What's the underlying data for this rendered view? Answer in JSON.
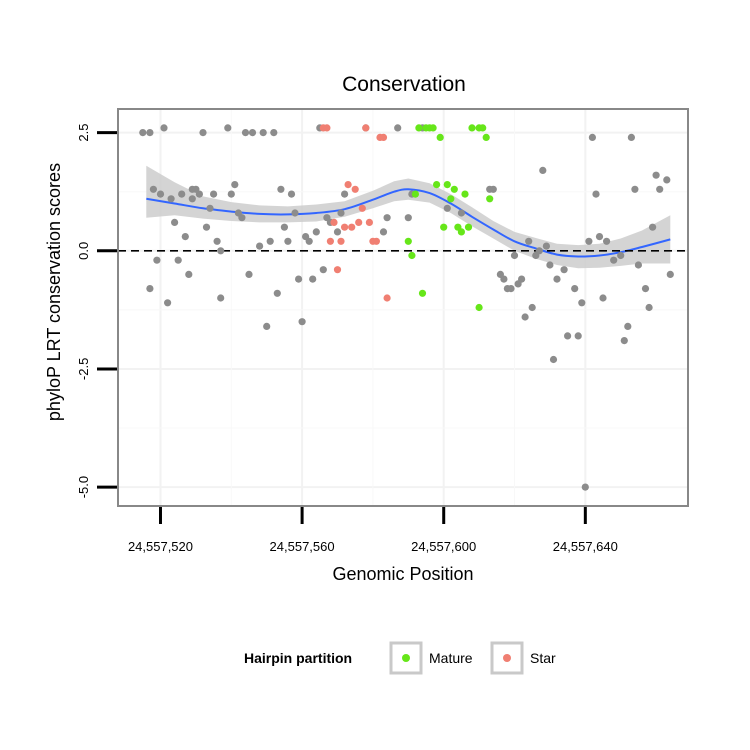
{
  "chart_data": {
    "type": "scatter",
    "title": "Conservation",
    "xlabel": "Genomic Position",
    "ylabel": "phyloP LRT conservation scores",
    "xlim": [
      24557508,
      24557669
    ],
    "ylim": [
      -5.4,
      3.0
    ],
    "x_ticks": [
      {
        "value": 24557520,
        "label": "24,557,520"
      },
      {
        "value": 24557560,
        "label": "24,557,560"
      },
      {
        "value": 24557600,
        "label": "24,557,600"
      },
      {
        "value": 24557640,
        "label": "24,557,640"
      }
    ],
    "y_ticks": [
      {
        "value": 2.5,
        "label": "2.5"
      },
      {
        "value": 0.0,
        "label": "0.0"
      },
      {
        "value": -2.5,
        "label": "-2.5"
      },
      {
        "value": -5.0,
        "label": "-5.0"
      }
    ],
    "reference_line": {
      "y": 0,
      "style": "dashed",
      "color": "#000000"
    },
    "colors": {
      "default": "#8c8c8c",
      "Mature": "#66e619",
      "Star": "#f07f72",
      "smooth": "#3366ff",
      "ribbon": "#cccccc",
      "panel_border": "#888888",
      "grid": "#f2f2f2"
    },
    "legend": {
      "title": "Hairpin partition",
      "position": "bottom",
      "entries": [
        {
          "name": "Mature",
          "color": "#66e619"
        },
        {
          "name": "Star",
          "color": "#f07f72"
        }
      ]
    },
    "smooth": {
      "x": [
        24557516,
        24557524,
        24557532,
        24557540,
        24557548,
        24557556,
        24557564,
        24557572,
        24557580,
        24557586,
        24557590,
        24557596,
        24557602,
        24557608,
        24557614,
        24557620,
        24557626,
        24557632,
        24557638,
        24557644,
        24557650,
        24557656,
        24557664
      ],
      "y": [
        1.1,
        1.0,
        0.9,
        0.83,
        0.78,
        0.77,
        0.8,
        0.88,
        1.08,
        1.25,
        1.3,
        1.22,
        1.0,
        0.72,
        0.45,
        0.2,
        0.05,
        -0.08,
        -0.12,
        -0.1,
        -0.03,
        0.08,
        0.24
      ],
      "ci_low": [
        0.7,
        0.75,
        0.68,
        0.63,
        0.6,
        0.6,
        0.62,
        0.72,
        0.9,
        1.05,
        1.08,
        1.02,
        0.8,
        0.52,
        0.26,
        0.0,
        -0.17,
        -0.3,
        -0.37,
        -0.36,
        -0.32,
        -0.27,
        -0.27
      ],
      "ci_high": [
        1.8,
        1.45,
        1.15,
        1.03,
        0.96,
        0.94,
        0.98,
        1.05,
        1.27,
        1.47,
        1.53,
        1.43,
        1.2,
        0.92,
        0.63,
        0.4,
        0.27,
        0.15,
        0.12,
        0.15,
        0.26,
        0.43,
        0.75
      ]
    },
    "series": [
      {
        "name": "Other",
        "color": "#8c8c8c",
        "points": [
          [
            24557515,
            2.5
          ],
          [
            24557517,
            2.5
          ],
          [
            24557517,
            -0.8
          ],
          [
            24557518,
            1.3
          ],
          [
            24557519,
            -0.2
          ],
          [
            24557520,
            1.2
          ],
          [
            24557521,
            2.6
          ],
          [
            24557522,
            -1.1
          ],
          [
            24557523,
            1.1
          ],
          [
            24557524,
            0.6
          ],
          [
            24557525,
            -0.2
          ],
          [
            24557526,
            1.2
          ],
          [
            24557527,
            0.3
          ],
          [
            24557528,
            -0.5
          ],
          [
            24557529,
            1.3
          ],
          [
            24557529,
            1.1
          ],
          [
            24557530,
            1.3
          ],
          [
            24557531,
            1.2
          ],
          [
            24557532,
            2.5
          ],
          [
            24557533,
            0.5
          ],
          [
            24557534,
            0.9
          ],
          [
            24557535,
            1.2
          ],
          [
            24557536,
            0.2
          ],
          [
            24557537,
            -1.0
          ],
          [
            24557537,
            0.0
          ],
          [
            24557539,
            2.6
          ],
          [
            24557540,
            1.2
          ],
          [
            24557541,
            1.4
          ],
          [
            24557542,
            0.8
          ],
          [
            24557543,
            0.7
          ],
          [
            24557544,
            2.5
          ],
          [
            24557545,
            -0.5
          ],
          [
            24557546,
            2.5
          ],
          [
            24557548,
            0.1
          ],
          [
            24557549,
            2.5
          ],
          [
            24557550,
            -1.6
          ],
          [
            24557551,
            0.2
          ],
          [
            24557552,
            2.5
          ],
          [
            24557553,
            -0.9
          ],
          [
            24557554,
            1.3
          ],
          [
            24557555,
            0.5
          ],
          [
            24557556,
            0.2
          ],
          [
            24557557,
            1.2
          ],
          [
            24557558,
            0.8
          ],
          [
            24557559,
            -0.6
          ],
          [
            24557560,
            -1.5
          ],
          [
            24557561,
            0.3
          ],
          [
            24557562,
            0.2
          ],
          [
            24557563,
            -0.6
          ],
          [
            24557564,
            0.4
          ],
          [
            24557565,
            2.6
          ],
          [
            24557566,
            -0.4
          ],
          [
            24557567,
            0.7
          ],
          [
            24557568,
            0.6
          ],
          [
            24557570,
            0.4
          ],
          [
            24557571,
            0.8
          ],
          [
            24557572,
            1.2
          ],
          [
            24557578,
            2.6
          ],
          [
            24557583,
            0.4
          ],
          [
            24557584,
            0.7
          ],
          [
            24557587,
            2.6
          ],
          [
            24557590,
            0.7
          ],
          [
            24557591,
            1.2
          ],
          [
            24557594,
            2.6
          ],
          [
            24557601,
            0.9
          ],
          [
            24557605,
            0.8
          ],
          [
            24557613,
            1.3
          ],
          [
            24557614,
            1.3
          ],
          [
            24557616,
            -0.5
          ],
          [
            24557617,
            -0.6
          ],
          [
            24557618,
            -0.8
          ],
          [
            24557619,
            -0.8
          ],
          [
            24557620,
            -0.1
          ],
          [
            24557621,
            -0.7
          ],
          [
            24557622,
            -0.6
          ],
          [
            24557623,
            -1.4
          ],
          [
            24557624,
            0.2
          ],
          [
            24557625,
            -1.2
          ],
          [
            24557626,
            -0.1
          ],
          [
            24557627,
            0.0
          ],
          [
            24557628,
            1.7
          ],
          [
            24557629,
            0.1
          ],
          [
            24557630,
            -0.3
          ],
          [
            24557631,
            -2.3
          ],
          [
            24557632,
            -0.6
          ],
          [
            24557634,
            -0.4
          ],
          [
            24557635,
            -1.8
          ],
          [
            24557637,
            -0.8
          ],
          [
            24557638,
            -1.8
          ],
          [
            24557639,
            -1.1
          ],
          [
            24557640,
            -5.0
          ],
          [
            24557641,
            0.2
          ],
          [
            24557642,
            2.4
          ],
          [
            24557643,
            1.2
          ],
          [
            24557644,
            0.3
          ],
          [
            24557645,
            -1.0
          ],
          [
            24557646,
            0.2
          ],
          [
            24557648,
            -0.2
          ],
          [
            24557650,
            -0.1
          ],
          [
            24557651,
            -1.9
          ],
          [
            24557652,
            -1.6
          ],
          [
            24557653,
            2.4
          ],
          [
            24557654,
            1.3
          ],
          [
            24557655,
            -0.3
          ],
          [
            24557657,
            -0.8
          ],
          [
            24557658,
            -1.2
          ],
          [
            24557659,
            0.5
          ],
          [
            24557660,
            1.6
          ],
          [
            24557661,
            1.3
          ],
          [
            24557663,
            1.5
          ],
          [
            24557664,
            -0.5
          ]
        ]
      },
      {
        "name": "Mature",
        "color": "#66e619",
        "points": [
          [
            24557590,
            0.2
          ],
          [
            24557591,
            -0.1
          ],
          [
            24557592,
            1.2
          ],
          [
            24557593,
            2.6
          ],
          [
            24557594,
            -0.9
          ],
          [
            24557595,
            2.6
          ],
          [
            24557596,
            2.6
          ],
          [
            24557597,
            2.6
          ],
          [
            24557598,
            1.4
          ],
          [
            24557599,
            2.4
          ],
          [
            24557600,
            0.5
          ],
          [
            24557601,
            1.4
          ],
          [
            24557602,
            1.1
          ],
          [
            24557603,
            1.3
          ],
          [
            24557604,
            0.5
          ],
          [
            24557605,
            0.4
          ],
          [
            24557606,
            1.2
          ],
          [
            24557607,
            0.5
          ],
          [
            24557608,
            2.6
          ],
          [
            24557610,
            -1.2
          ],
          [
            24557610,
            2.6
          ],
          [
            24557611,
            2.6
          ],
          [
            24557612,
            2.4
          ],
          [
            24557613,
            1.1
          ]
        ]
      },
      {
        "name": "Star",
        "color": "#f07f72",
        "points": [
          [
            24557566,
            2.6
          ],
          [
            24557567,
            2.6
          ],
          [
            24557568,
            0.2
          ],
          [
            24557569,
            0.6
          ],
          [
            24557570,
            -0.4
          ],
          [
            24557571,
            0.2
          ],
          [
            24557572,
            0.5
          ],
          [
            24557573,
            1.4
          ],
          [
            24557574,
            0.5
          ],
          [
            24557575,
            1.3
          ],
          [
            24557576,
            0.6
          ],
          [
            24557577,
            0.9
          ],
          [
            24557578,
            2.6
          ],
          [
            24557579,
            0.6
          ],
          [
            24557580,
            0.2
          ],
          [
            24557581,
            0.2
          ],
          [
            24557582,
            2.4
          ],
          [
            24557583,
            2.4
          ],
          [
            24557584,
            -1.0
          ]
        ]
      }
    ]
  }
}
